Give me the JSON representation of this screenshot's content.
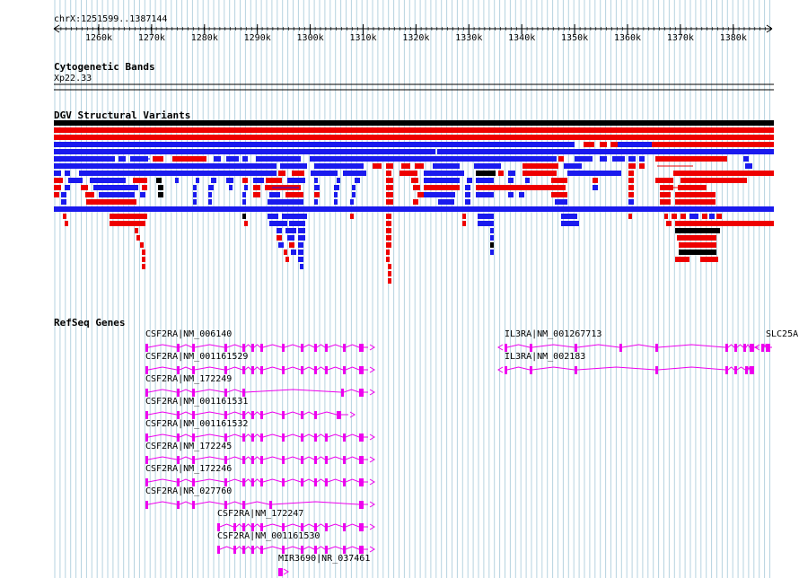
{
  "ruler": {
    "position": "chrX:1251599..1387144",
    "ticks": [
      "1260k",
      "1270k",
      "1280k",
      "1290k",
      "1300k",
      "1310k",
      "1320k",
      "1330k",
      "1340k",
      "1350k",
      "1360k",
      "1370k",
      "1380k"
    ]
  },
  "tracks": {
    "cytoband": {
      "title": "Cytogenetic Bands",
      "band": "Xp22.33"
    },
    "dgv": {
      "title": "DGV Structural Variants"
    },
    "refseq": {
      "title": "RefSeq Genes"
    }
  },
  "genes": [
    {
      "label": "CSF2RA|NM_006140"
    },
    {
      "label": "CSF2RA|NM_001161529"
    },
    {
      "label": "CSF2RA|NM_172249"
    },
    {
      "label": "CSF2RA|NM_001161531"
    },
    {
      "label": "CSF2RA|NM_001161532"
    },
    {
      "label": "CSF2RA|NM_172245"
    },
    {
      "label": "CSF2RA|NM_172246"
    },
    {
      "label": "CSF2RA|NR_027760"
    },
    {
      "label": "CSF2RA|NM_172247"
    },
    {
      "label": "CSF2RA|NM_001161530"
    },
    {
      "label": "MIR3690|NR_037461"
    },
    {
      "label": "IL3RA|NM_001267713"
    },
    {
      "label": "IL3RA|NM_002183"
    },
    {
      "label": "SLC25A"
    }
  ],
  "colors": {
    "gain": "#ee0000",
    "loss": "#1a1aee",
    "complex": "#000000",
    "gene": "#ee00ee",
    "grid": "#b6d3e0"
  }
}
